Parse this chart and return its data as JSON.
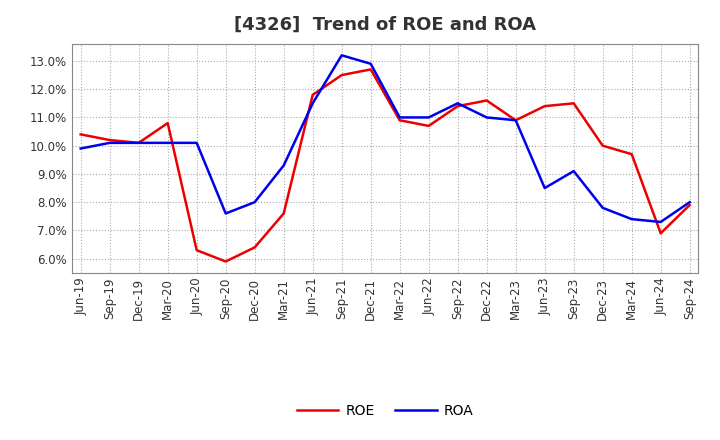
{
  "title": "[4326]  Trend of ROE and ROA",
  "background_color": "#ffffff",
  "plot_background_color": "#ffffff",
  "grid_color": "#aaaaaa",
  "x_labels": [
    "Jun-19",
    "Sep-19",
    "Dec-19",
    "Mar-20",
    "Jun-20",
    "Sep-20",
    "Dec-20",
    "Mar-21",
    "Jun-21",
    "Sep-21",
    "Dec-21",
    "Mar-22",
    "Jun-22",
    "Sep-22",
    "Dec-22",
    "Mar-23",
    "Jun-23",
    "Sep-23",
    "Dec-23",
    "Mar-24",
    "Jun-24",
    "Sep-24"
  ],
  "roe_values": [
    10.4,
    10.2,
    10.1,
    10.8,
    6.3,
    5.9,
    6.4,
    7.6,
    11.8,
    12.5,
    12.7,
    10.9,
    10.7,
    11.4,
    11.6,
    10.9,
    11.4,
    11.5,
    10.0,
    9.7,
    6.9,
    7.9
  ],
  "roa_values": [
    9.9,
    10.1,
    10.1,
    10.1,
    10.1,
    7.6,
    8.0,
    9.3,
    11.5,
    13.2,
    12.9,
    11.0,
    11.0,
    11.5,
    11.0,
    10.9,
    8.5,
    9.1,
    7.8,
    7.4,
    7.3,
    8.0
  ],
  "roe_color": "#ee0000",
  "roa_color": "#0000ee",
  "ylim": [
    5.5,
    13.6
  ],
  "yticks": [
    6.0,
    7.0,
    8.0,
    9.0,
    10.0,
    11.0,
    12.0,
    13.0
  ],
  "line_width": 1.8,
  "legend_entries": [
    "ROE",
    "ROA"
  ],
  "title_fontsize": 13,
  "tick_fontsize": 8.5,
  "title_color": "#333333"
}
